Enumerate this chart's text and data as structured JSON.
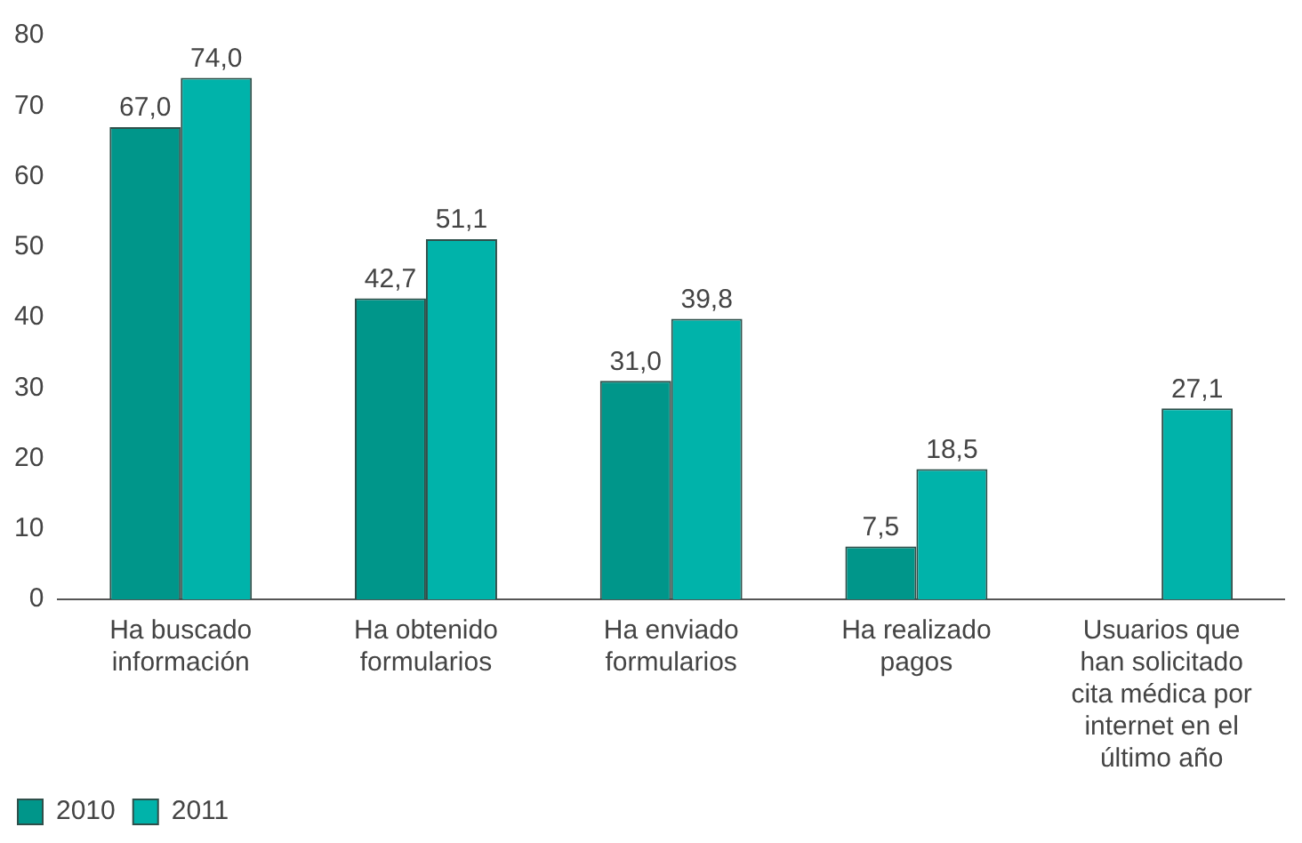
{
  "chart_data": {
    "type": "bar",
    "categories": [
      "Ha buscado información",
      "Ha obtenido formularios",
      "Ha enviado formularios",
      "Ha realizado pagos",
      "Usuarios que han solicitado cita médica por internet en el último año"
    ],
    "series": [
      {
        "name": "2010",
        "color": "#00968a",
        "values": [
          67.0,
          42.7,
          31.0,
          7.5,
          null
        ],
        "value_labels": [
          "67,0",
          "42,7",
          "31,0",
          "7,5",
          null
        ]
      },
      {
        "name": "2011",
        "color": "#00b3aa",
        "values": [
          74.0,
          51.1,
          39.8,
          18.5,
          27.1
        ],
        "value_labels": [
          "74,0",
          "51,1",
          "39,8",
          "18,5",
          "27,1"
        ]
      }
    ],
    "ylim": [
      0,
      80
    ],
    "yticks": [
      0,
      10,
      20,
      30,
      40,
      50,
      60,
      70,
      80
    ],
    "grid": false,
    "legend": "bottom left"
  }
}
